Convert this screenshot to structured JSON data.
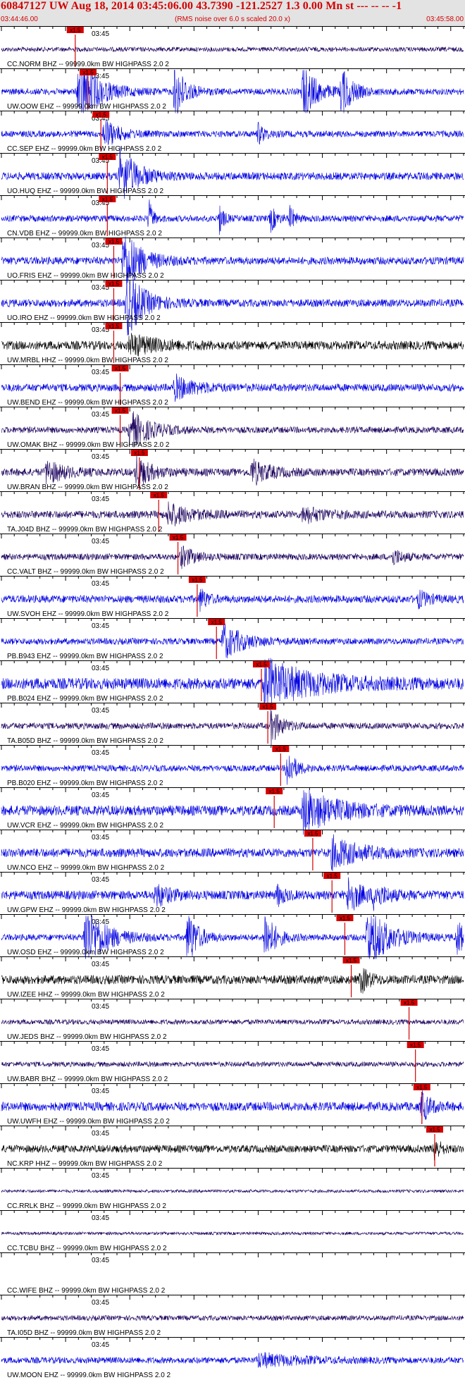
{
  "header": {
    "title": "60847127 UW Aug 18, 2014 03:45:06.00   43.7390 -121.2527  1.3 0.00 Mn st --- -- --  -1",
    "start_time": "03:44:46.00",
    "subtitle": "(RMS noise over 6.0 s scaled 20.0 x)",
    "end_time": "03:45:58.00"
  },
  "colors": {
    "header_bg": "#e3e3e3",
    "header_text": "#d40000",
    "pick": "#d40000"
  },
  "chart_data": {
    "type": "line",
    "time_label": "03:45",
    "pick_label": "x1.5",
    "x_range_seconds": [
      0,
      72
    ],
    "traces": [
      {
        "label": "CC.NORM BHZ -- 99999.0km BW  HIGHPASS  2.0  2",
        "color": "#1a005c",
        "amp": 0.18,
        "events": [],
        "clip": false,
        "pick_s": 11.5
      },
      {
        "label": "UW.OOW EHZ -- 99999.0km BW  HIGHPASS  2.0  2",
        "color": "#0000e0",
        "amp": 0.25,
        "events": [
          {
            "t": 12,
            "w": 3,
            "a": 2.6
          },
          {
            "t": 27,
            "w": 1.5,
            "a": 2.4
          },
          {
            "t": 47,
            "w": 2,
            "a": 2.2
          },
          {
            "t": 53,
            "w": 1.5,
            "a": 2.0
          }
        ],
        "clip": true,
        "pick_s": 13.5
      },
      {
        "label": "CC.SEP EHZ -- 99999.0km BW  HIGHPASS  2.0  2",
        "color": "#0000e0",
        "amp": 0.25,
        "events": [
          {
            "t": 16,
            "w": 2,
            "a": 1.2
          },
          {
            "t": 40,
            "w": 1,
            "a": 0.8
          }
        ],
        "clip": false,
        "pick_s": 15.5
      },
      {
        "label": "UO.HUQ EHZ -- 99999.0km BW  HIGHPASS  2.0  2",
        "color": "#0000e0",
        "amp": 0.3,
        "events": [
          {
            "t": 18.5,
            "w": 2.5,
            "a": 2.2
          }
        ],
        "clip": false,
        "pick_s": 16.5
      },
      {
        "label": "CN.VDB EHZ -- 99999.0km BW  HIGHPASS  2.0  2",
        "color": "#0000e0",
        "amp": 0.25,
        "events": [
          {
            "t": 23,
            "w": 0.6,
            "a": 1.4
          },
          {
            "t": 34,
            "w": 0.6,
            "a": 1.2
          },
          {
            "t": 42,
            "w": 0.8,
            "a": 1.0
          },
          {
            "t": 45,
            "w": 0.6,
            "a": 1.0
          }
        ],
        "clip": false,
        "pick_s": 16.5
      },
      {
        "label": "UO.FRIS EHZ -- 99999.0km BW  HIGHPASS  2.0  2",
        "color": "#0000e0",
        "amp": 0.3,
        "events": [
          {
            "t": 19,
            "w": 2.5,
            "a": 2.6
          }
        ],
        "clip": false,
        "pick_s": 17.5
      },
      {
        "label": "UO.IRO EHZ -- 99999.0km BW  HIGHPASS  2.0  2",
        "color": "#0000e0",
        "amp": 0.3,
        "events": [
          {
            "t": 19.5,
            "w": 2.5,
            "a": 2.6
          }
        ],
        "clip": false,
        "pick_s": 17.5
      },
      {
        "label": "UW.MRBL HHZ -- 99999.0km BW  HIGHPASS  2.0  2",
        "color": "#000000",
        "amp": 0.35,
        "events": [
          {
            "t": 20,
            "w": 4,
            "a": 0.8
          }
        ],
        "clip": false,
        "pick_s": 17.5
      },
      {
        "label": "UW.BEND EHZ -- 99999.0km BW  HIGHPASS  2.0  2",
        "color": "#0000e0",
        "amp": 0.3,
        "events": [
          {
            "t": 27,
            "w": 3,
            "a": 0.9
          }
        ],
        "clip": false,
        "pick_s": 18.5
      },
      {
        "label": "UW.OMAK BHZ -- 99999.0km BW  HIGHPASS  2.0  2",
        "color": "#1a005c",
        "amp": 0.25,
        "events": [
          {
            "t": 20,
            "w": 3,
            "a": 1.5
          }
        ],
        "clip": false,
        "pick_s": 18.5
      },
      {
        "label": "UW.BRAN BHZ -- 99999.0km BW  HIGHPASS  2.0  2",
        "color": "#1a005c",
        "amp": 0.3,
        "events": [
          {
            "t": 7,
            "w": 2.5,
            "a": 0.9
          },
          {
            "t": 21,
            "w": 2,
            "a": 1.3
          },
          {
            "t": 39,
            "w": 2.5,
            "a": 1.0
          }
        ],
        "clip": false,
        "pick_s": 21.5
      },
      {
        "label": "TA.J04D BHZ -- 99999.0km BW  HIGHPASS  2.0  2",
        "color": "#1a005c",
        "amp": 0.3,
        "events": [
          {
            "t": 26,
            "w": 3,
            "a": 0.9
          },
          {
            "t": 47,
            "w": 3,
            "a": 0.6
          }
        ],
        "clip": false,
        "pick_s": 24.5
      },
      {
        "label": "CC.VALT BHZ -- 99999.0km BW  HIGHPASS  2.0  2",
        "color": "#1a005c",
        "amp": 0.25,
        "events": [
          {
            "t": 28,
            "w": 2,
            "a": 0.8
          },
          {
            "t": 61,
            "w": 1.5,
            "a": 0.6
          }
        ],
        "clip": false,
        "pick_s": 27.5
      },
      {
        "label": "UW.SVOH EHZ -- 99999.0km BW  HIGHPASS  2.0  2",
        "color": "#0000e0",
        "amp": 0.3,
        "events": [
          {
            "t": 31,
            "w": 1,
            "a": 0.9
          },
          {
            "t": 65,
            "w": 1.5,
            "a": 0.6
          }
        ],
        "clip": false,
        "pick_s": 30.5
      },
      {
        "label": "PB.B943 EHZ -- 99999.0km BW  HIGHPASS  2.0  2",
        "color": "#0000e0",
        "amp": 0.25,
        "events": [
          {
            "t": 34.5,
            "w": 3,
            "a": 1.4
          }
        ],
        "clip": false,
        "pick_s": 33.5
      },
      {
        "label": "PB.B024 EHZ -- 99999.0km BW  HIGHPASS  2.0  2",
        "color": "#0000e0",
        "amp": 0.45,
        "events": [
          {
            "t": 41,
            "w": 7,
            "a": 1.8
          }
        ],
        "clip": false,
        "pick_s": 40.5
      },
      {
        "label": "TA.B05D BHZ -- 99999.0km BW  HIGHPASS  2.0  2",
        "color": "#1a005c",
        "amp": 0.25,
        "events": [
          {
            "t": 42,
            "w": 1.5,
            "a": 1.4
          }
        ],
        "clip": false,
        "pick_s": 41.5
      },
      {
        "label": "PB.B020 EHZ -- 99999.0km BW  HIGHPASS  2.0  2",
        "color": "#0000e0",
        "amp": 0.25,
        "events": [
          {
            "t": 44.5,
            "w": 1.2,
            "a": 1.6
          }
        ],
        "clip": false,
        "pick_s": 43.5
      },
      {
        "label": "UW.VCR EHZ -- 99999.0km BW  HIGHPASS  2.0  2",
        "color": "#0000e0",
        "amp": 0.4,
        "events": [
          {
            "t": 47,
            "w": 5,
            "a": 1.6
          }
        ],
        "clip": false,
        "pick_s": 42.5
      },
      {
        "label": "UW.NCO EHZ -- 99999.0km BW  HIGHPASS  2.0  2",
        "color": "#0000e0",
        "amp": 0.35,
        "events": [
          {
            "t": 51.5,
            "w": 4,
            "a": 1.2
          }
        ],
        "clip": false,
        "pick_s": 48.5
      },
      {
        "label": "UW.GPW EHZ -- 99999.0km BW  HIGHPASS  2.0  2",
        "color": "#0000e0",
        "amp": 0.35,
        "events": [
          {
            "t": 24,
            "w": 2,
            "a": 0.9
          },
          {
            "t": 43,
            "w": 1,
            "a": 0.8
          },
          {
            "t": 54,
            "w": 2,
            "a": 1.4
          },
          {
            "t": 58,
            "w": 2,
            "a": 0.8
          }
        ],
        "clip": false,
        "pick_s": 51.5
      },
      {
        "label": "UW.OSD EHZ -- 99999.0km BW  HIGHPASS  2.0  2",
        "color": "#0000e0",
        "amp": 0.25,
        "events": [
          {
            "t": 13,
            "w": 3,
            "a": 2.6
          },
          {
            "t": 29,
            "w": 1.5,
            "a": 2.3
          },
          {
            "t": 41,
            "w": 1.5,
            "a": 2.2
          },
          {
            "t": 57,
            "w": 3,
            "a": 2.6
          },
          {
            "t": 71,
            "w": 1,
            "a": 1.5
          }
        ],
        "clip": true,
        "pick_s": 53.5
      },
      {
        "label": "UW.IZEE HHZ -- 99999.0km BW  HIGHPASS  2.0  2",
        "color": "#000000",
        "amp": 0.35,
        "events": [
          {
            "t": 56,
            "w": 1.2,
            "a": 1.0
          }
        ],
        "clip": false,
        "pick_s": 54.5
      },
      {
        "label": "UW.JEDS BHZ -- 99999.0km BW  HIGHPASS  2.0  2",
        "color": "#1a005c",
        "amp": 0.2,
        "events": [],
        "clip": false,
        "pick_s": 63.5
      },
      {
        "label": "UW.BABR BHZ -- 99999.0km BW  HIGHPASS  2.0  2",
        "color": "#1a005c",
        "amp": 0.2,
        "events": [],
        "clip": false,
        "pick_s": 64.5
      },
      {
        "label": "UW.UWFH EHZ -- 99999.0km BW  HIGHPASS  2.0  2",
        "color": "#0000e0",
        "amp": 0.35,
        "events": [
          {
            "t": 65.5,
            "w": 1.2,
            "a": 1.2
          }
        ],
        "clip": false,
        "pick_s": 65.5
      },
      {
        "label": "NC.KRP HHZ -- 99999.0km BW  HIGHPASS  2.0  2",
        "color": "#000000",
        "amp": 0.3,
        "events": [
          {
            "t": 67.5,
            "w": 0.8,
            "a": 1.0
          }
        ],
        "clip": false,
        "pick_s": 67.5
      },
      {
        "label": "CC.RRLK BHZ -- 99999.0km BW  HIGHPASS  2.0  2",
        "color": "#1a005c",
        "amp": 0.12,
        "events": [],
        "clip": false,
        "pick_s": null
      },
      {
        "label": "CC.TCBU BHZ -- 99999.0km BW  HIGHPASS  2.0  2",
        "color": "#1a005c",
        "amp": 0.12,
        "events": [],
        "clip": false,
        "pick_s": null
      },
      {
        "label": "CC.WIFE BHZ -- 99999.0km BW  HIGHPASS  2.0  2",
        "color": "#1a005c",
        "amp": 0.0,
        "events": [],
        "clip": false,
        "pick_s": null
      },
      {
        "label": "TA.I05D BHZ -- 99999.0km BW  HIGHPASS  2.0  2",
        "color": "#1a005c",
        "amp": 0.2,
        "events": [],
        "clip": false,
        "pick_s": null
      },
      {
        "label": "UW.MOON EHZ -- 99999.0km BW  HIGHPASS  2.0  2",
        "color": "#0000e0",
        "amp": 0.25,
        "events": [
          {
            "t": 40,
            "w": 6,
            "a": 0.5
          }
        ],
        "clip": false,
        "pick_s": null
      }
    ]
  }
}
